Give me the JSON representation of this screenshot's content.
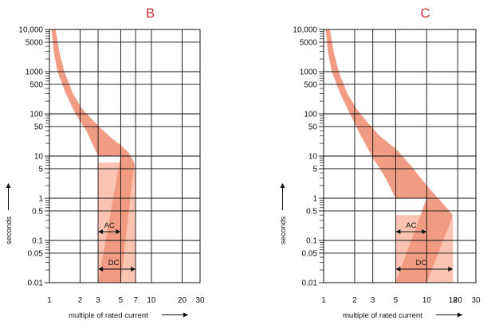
{
  "chart_data": [
    {
      "type": "area",
      "title": "B",
      "xlabel": "multiple of rated current",
      "ylabel": "seconds",
      "x_scale": "log",
      "y_scale": "log",
      "xlim": [
        1,
        30
      ],
      "ylim": [
        0.01,
        10000
      ],
      "x_ticks": [
        1,
        2,
        3,
        5,
        7,
        10,
        20,
        30
      ],
      "x_tick_labels": [
        "1",
        "2",
        "3",
        "5",
        "7",
        "10",
        "20",
        "30"
      ],
      "y_ticks": [
        0.01,
        0.05,
        0.1,
        0.5,
        1,
        5,
        10,
        50,
        100,
        500,
        1000,
        5000,
        10000
      ],
      "y_tick_labels": [
        "0.01",
        "0.05",
        "0.1",
        "0.5",
        "1",
        "5",
        "10",
        "50",
        "100",
        "500",
        "1000",
        "5000",
        "10,000"
      ],
      "grid": true,
      "series": [
        {
          "name": "AC",
          "color": "#f19a82",
          "upper": [
            [
              1.15,
              10000
            ],
            [
              1.25,
              3000
            ],
            [
              1.4,
              1000
            ],
            [
              1.7,
              300
            ],
            [
              2.1,
              130
            ],
            [
              2.6,
              75
            ],
            [
              3.2,
              45
            ],
            [
              4.2,
              25
            ],
            [
              5.0,
              18
            ],
            [
              6.0,
              12
            ],
            [
              6.8,
              7
            ]
          ],
          "lower": [
            [
              1.05,
              10000
            ],
            [
              1.1,
              3000
            ],
            [
              1.2,
              1000
            ],
            [
              1.45,
              300
            ],
            [
              1.8,
              100
            ],
            [
              2.3,
              40
            ],
            [
              3.0,
              10
            ],
            [
              5.0,
              10
            ]
          ],
          "range_low": 3,
          "range_high": 5
        },
        {
          "name": "DC",
          "color": "#fac3b2",
          "range_low": 3,
          "range_high": 7
        }
      ]
    },
    {
      "type": "area",
      "title": "C",
      "xlabel": "multiple of rated current",
      "ylabel": "seconds",
      "x_scale": "log",
      "y_scale": "log",
      "xlim": [
        1,
        30
      ],
      "ylim": [
        0.01,
        10000
      ],
      "x_ticks": [
        1,
        2,
        3,
        5,
        10,
        18,
        20,
        30
      ],
      "x_tick_labels": [
        "1",
        "2",
        "3",
        "5",
        "10",
        "18",
        "20",
        "30"
      ],
      "y_ticks": [
        0.01,
        0.05,
        0.1,
        0.5,
        1,
        5,
        10,
        50,
        100,
        500,
        1000,
        5000,
        10000
      ],
      "y_tick_labels": [
        "0.01",
        "0.05",
        "0.1",
        "0.5",
        "1",
        "5",
        "10",
        "50",
        "100",
        "500",
        "1000",
        "5000",
        "10,000"
      ],
      "grid": true,
      "series": [
        {
          "name": "AC",
          "color": "#f19a82",
          "upper": [
            [
              1.15,
              10000
            ],
            [
              1.25,
              3000
            ],
            [
              1.4,
              1000
            ],
            [
              1.7,
              300
            ],
            [
              2.1,
              130
            ],
            [
              2.7,
              60
            ],
            [
              3.5,
              30
            ],
            [
              5.0,
              15
            ],
            [
              7.0,
              6
            ],
            [
              10.0,
              2
            ],
            [
              14.0,
              0.8
            ],
            [
              18.0,
              0.4
            ]
          ],
          "lower": [
            [
              1.05,
              10000
            ],
            [
              1.1,
              3000
            ],
            [
              1.2,
              1000
            ],
            [
              1.45,
              300
            ],
            [
              1.8,
              100
            ],
            [
              2.3,
              30
            ],
            [
              3.1,
              8
            ],
            [
              4.0,
              3
            ],
            [
              5.0,
              1
            ],
            [
              10.0,
              1
            ]
          ],
          "range_low": 5,
          "range_high": 10
        },
        {
          "name": "DC",
          "color": "#fac3b2",
          "range_low": 5,
          "range_high": 18
        }
      ]
    }
  ]
}
